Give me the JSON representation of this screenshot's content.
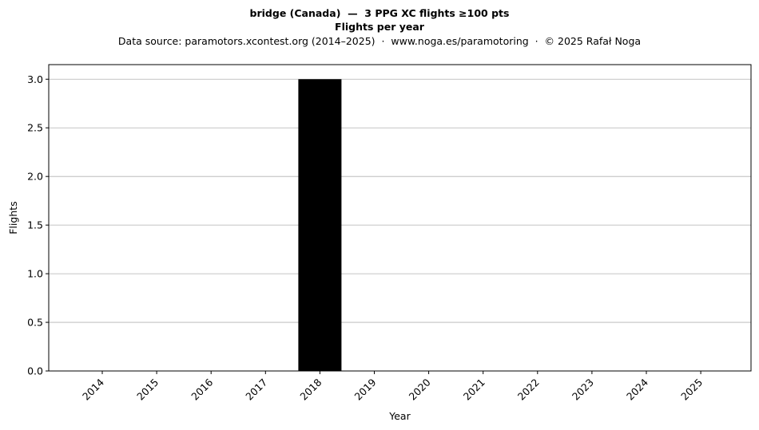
{
  "chart_data": {
    "type": "bar",
    "title": "bridge (Canada)  —  3 PPG XC flights ≥100 pts",
    "subtitle": "Flights per year",
    "caption": "Data source: paramotors.xcontest.org (2014–2025)  ·  www.noga.es/paramotoring  ·  © 2025 Rafał Noga",
    "xlabel": "Year",
    "ylabel": "Flights",
    "categories": [
      "2014",
      "2015",
      "2016",
      "2017",
      "2018",
      "2019",
      "2020",
      "2021",
      "2022",
      "2023",
      "2024",
      "2025"
    ],
    "values": [
      0,
      0,
      0,
      0,
      3,
      0,
      0,
      0,
      0,
      0,
      0,
      0
    ],
    "ylim": [
      0,
      3.15
    ],
    "yticks": [
      "0.0",
      "0.5",
      "1.0",
      "1.5",
      "2.0",
      "2.5",
      "3.0"
    ],
    "bar_color": "#000000",
    "grid": "horizontal",
    "legend": "none"
  }
}
